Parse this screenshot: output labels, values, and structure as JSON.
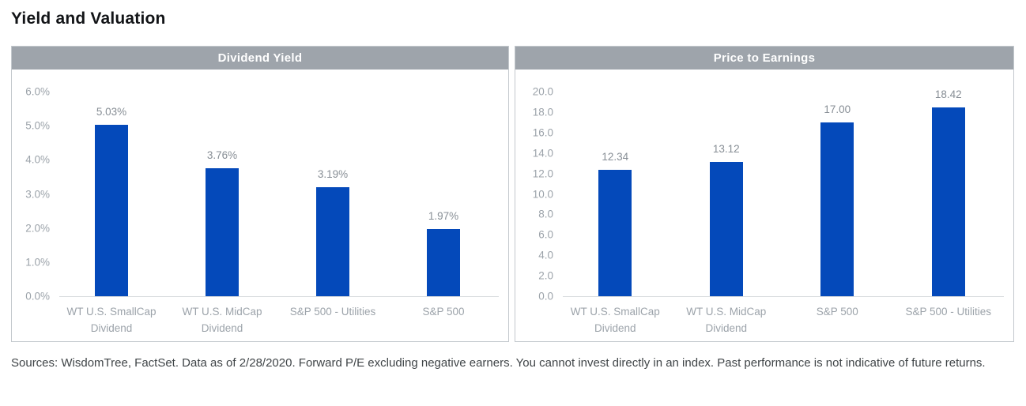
{
  "page": {
    "title": "Yield and Valuation",
    "footer": "Sources: WisdomTree, FactSet. Data as of 2/28/2020. Forward P/E excluding negative earners. You cannot invest directly in an index. Past performance is not indicative of future returns."
  },
  "colors": {
    "bar": "#0449ba",
    "header_bg": "#9ea4ab",
    "header_text": "#ffffff",
    "axis_text": "#9ca3aa",
    "value_text": "#878e95",
    "axis_line": "#d8dbde",
    "panel_border": "#c3c8cd"
  },
  "chart_data": [
    {
      "type": "bar",
      "title": "Dividend Yield",
      "categories": [
        "WT U.S. SmallCap Dividend",
        "WT U.S. MidCap Dividend",
        "S&P 500 - Utilities",
        "S&P 500"
      ],
      "values": [
        5.03,
        3.76,
        3.19,
        1.97
      ],
      "value_labels": [
        "5.03%",
        "3.76%",
        "3.19%",
        "1.97%"
      ],
      "xlabel": "",
      "ylabel": "",
      "ylim": [
        0,
        6
      ],
      "ytick_step": 1,
      "ytick_labels": [
        "6.0%",
        "5.0%",
        "4.0%",
        "3.0%",
        "2.0%",
        "1.0%",
        "0.0%"
      ],
      "grid": false,
      "legend": "none"
    },
    {
      "type": "bar",
      "title": "Price to Earnings",
      "categories": [
        "WT U.S. SmallCap Dividend",
        "WT U.S. MidCap Dividend",
        "S&P 500",
        "S&P 500 - Utilities"
      ],
      "values": [
        12.34,
        13.12,
        17.0,
        18.42
      ],
      "value_labels": [
        "12.34",
        "13.12",
        "17.00",
        "18.42"
      ],
      "xlabel": "",
      "ylabel": "",
      "ylim": [
        0,
        20
      ],
      "ytick_step": 2,
      "ytick_labels": [
        "20.0",
        "18.0",
        "16.0",
        "14.0",
        "12.0",
        "10.0",
        "8.0",
        "6.0",
        "4.0",
        "2.0",
        "0.0"
      ],
      "grid": false,
      "legend": "none"
    }
  ]
}
